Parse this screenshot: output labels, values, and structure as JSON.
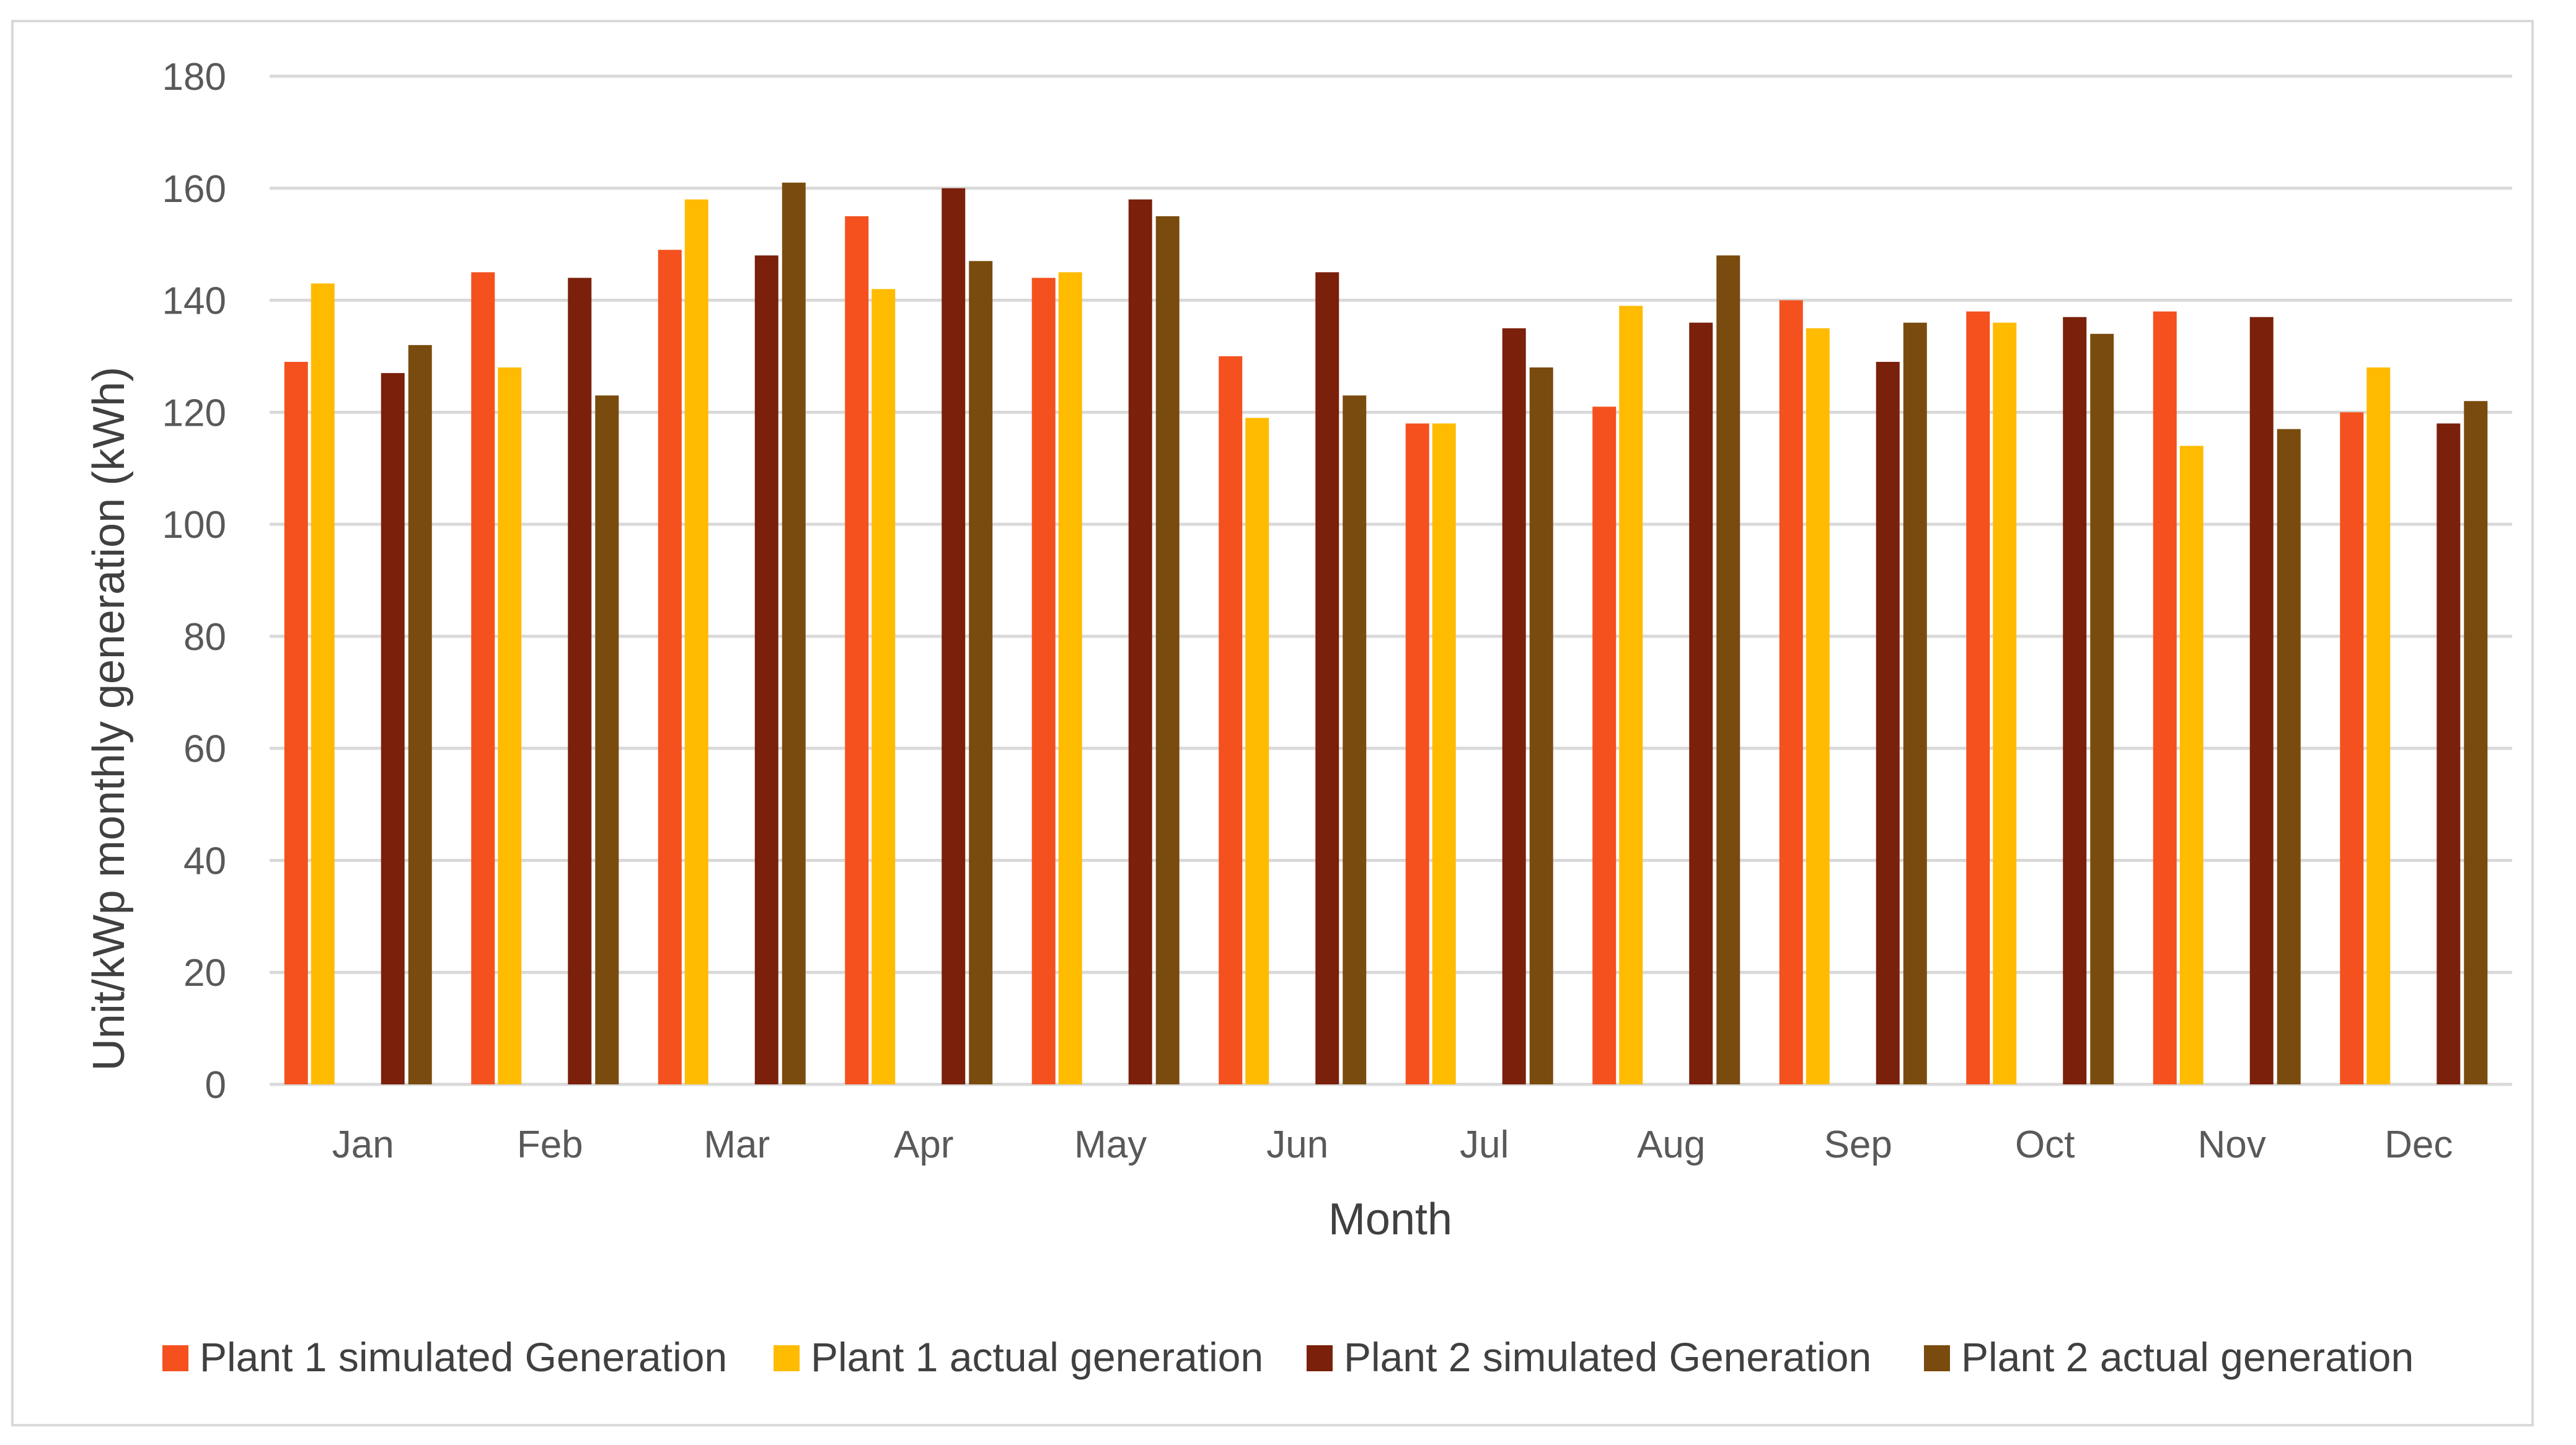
{
  "chart_data": {
    "type": "bar",
    "title": "",
    "xlabel": "Month",
    "ylabel": "Unit/kWp monthly generation (kWh)",
    "ylim": [
      0,
      180
    ],
    "yticks": [
      "0",
      "20",
      "40",
      "60",
      "80",
      "100",
      "120",
      "140",
      "160",
      "180"
    ],
    "grid": true,
    "legend_position": "bottom",
    "categories": [
      "Jan",
      "Feb",
      "Mar",
      "Apr",
      "May",
      "Jun",
      "Jul",
      "Aug",
      "Sep",
      "Oct",
      "Nov",
      "Dec"
    ],
    "series": [
      {
        "name": "Plant 1 simulated Generation",
        "color": "#f4511e",
        "values": [
          129,
          145,
          149,
          155,
          144,
          130,
          118,
          121,
          140,
          138,
          138,
          120
        ]
      },
      {
        "name": "Plant 1 actual generation",
        "color": "#ffbb00",
        "values": [
          143,
          128,
          158,
          142,
          145,
          119,
          118,
          139,
          135,
          136,
          114,
          128
        ]
      },
      {
        "name": "Plant 2 simulated Generation",
        "color": "#7b200b",
        "values": [
          127,
          144,
          148,
          160,
          158,
          145,
          135,
          136,
          129,
          137,
          137,
          118
        ]
      },
      {
        "name": "Plant 2 actual generation",
        "color": "#7a4b0e",
        "values": [
          132,
          123,
          161,
          147,
          155,
          123,
          128,
          148,
          136,
          134,
          117,
          122
        ]
      }
    ]
  }
}
